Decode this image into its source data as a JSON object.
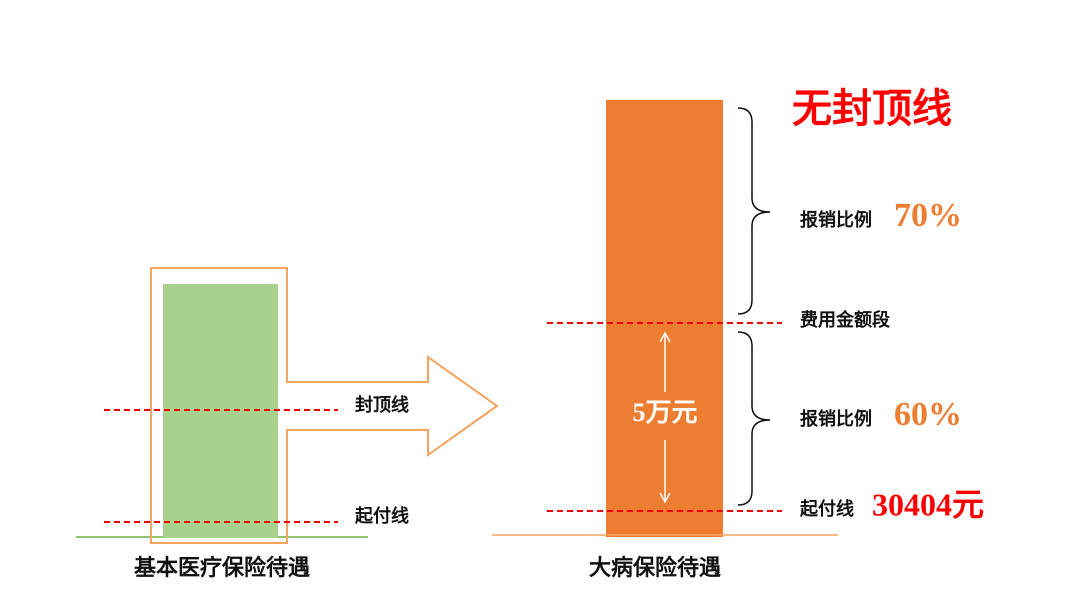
{
  "left": {
    "label": "基本医疗保险待遇",
    "cap_line": "封顶线",
    "deductible_line": "起付线"
  },
  "right": {
    "label": "大病保险待遇",
    "no_cap": "无封顶线",
    "upper": {
      "label": "报销比例",
      "rate": "70%"
    },
    "segment": "费用金额段",
    "lower": {
      "label": "报销比例",
      "rate": "60%"
    },
    "amount": "5万元",
    "deductible": {
      "label": "起付线",
      "value": "30404元"
    }
  }
}
